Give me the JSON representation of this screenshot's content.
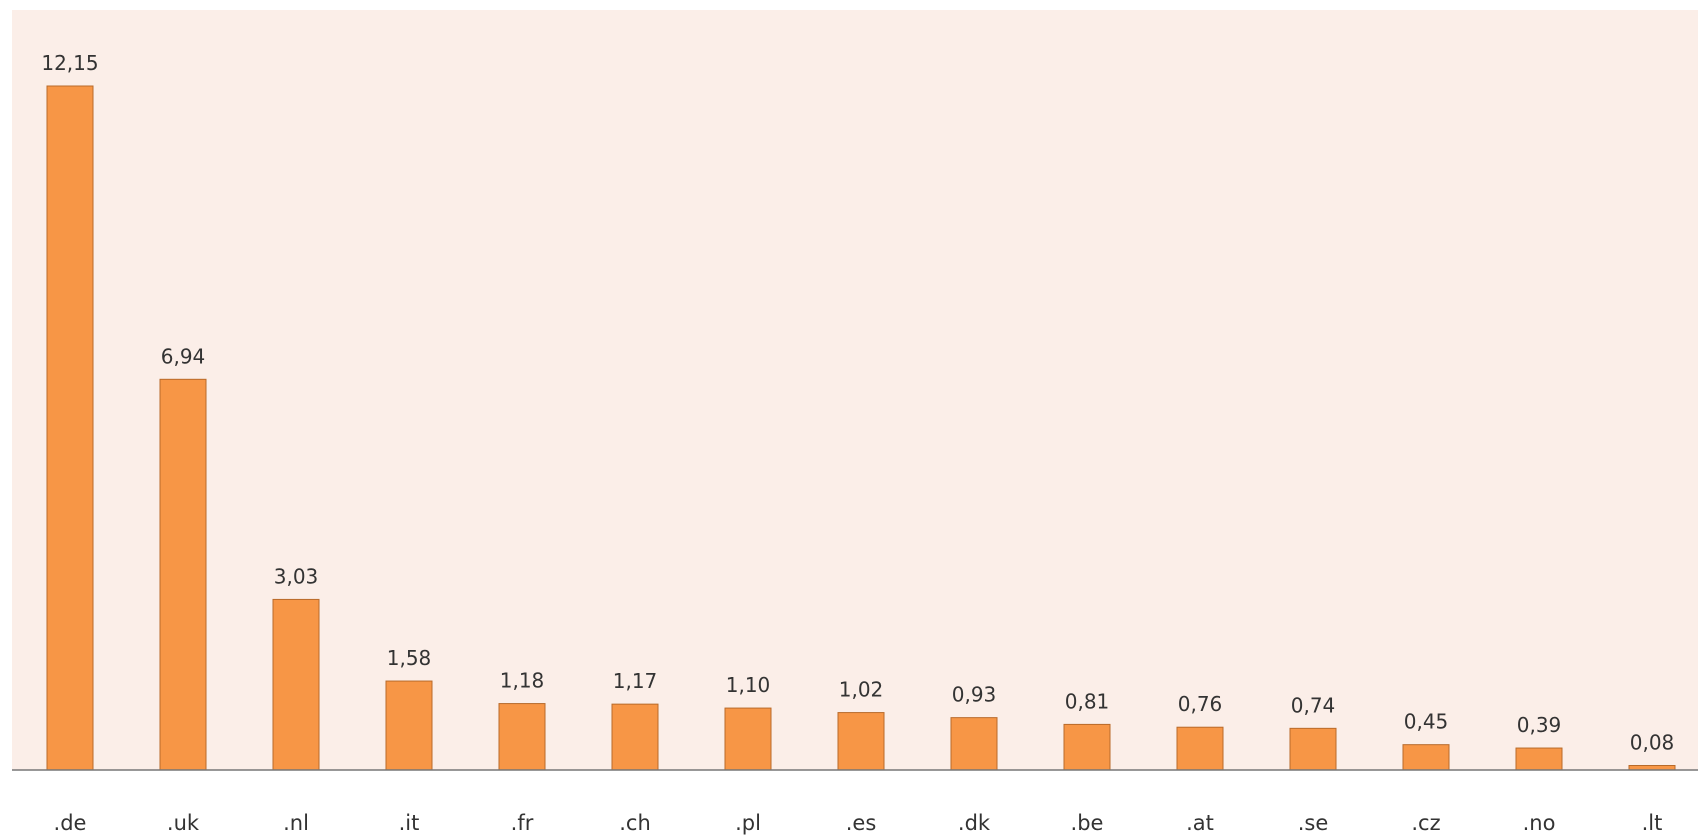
{
  "chart_data": {
    "type": "bar",
    "title": "",
    "xlabel": "",
    "ylabel": "",
    "categories": [
      ".de",
      ".uk",
      ".nl",
      ".it",
      ".fr",
      ".ch",
      ".pl",
      ".es",
      ".dk",
      ".be",
      ".at",
      ".se",
      ".cz",
      ".no",
      ".lt"
    ],
    "values": [
      12.15,
      6.94,
      3.03,
      1.58,
      1.18,
      1.17,
      1.1,
      1.02,
      0.93,
      0.81,
      0.76,
      0.74,
      0.45,
      0.39,
      0.08
    ],
    "value_labels": [
      "12,15",
      "6,94",
      "3,03",
      "1,58",
      "1,18",
      "1,17",
      "1,10",
      "1,02",
      "0,93",
      "0,81",
      "0,76",
      "0,74",
      "0,45",
      "0,39",
      "0,08"
    ],
    "ylim": [
      0,
      13.5
    ],
    "grid": false,
    "legend": "none",
    "colors": {
      "plot_background": "#FBEEE8",
      "bar_fill": "#F79646",
      "bar_stroke": "#B86A2A",
      "axis": "#777777",
      "text": "#333333"
    }
  }
}
